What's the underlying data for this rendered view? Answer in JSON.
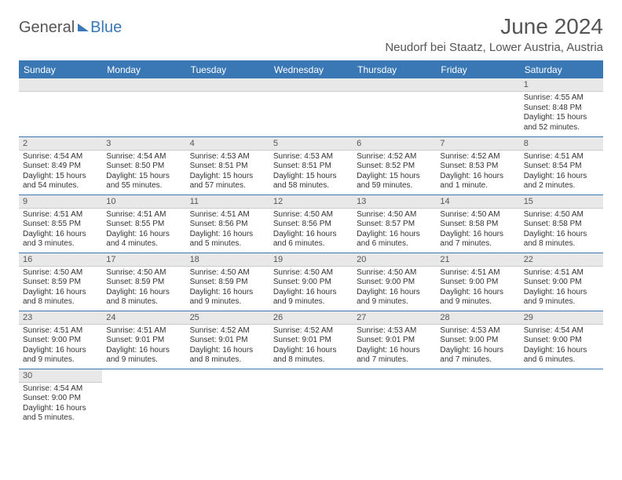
{
  "brand": {
    "part1": "General",
    "part2": "Blue"
  },
  "title": "June 2024",
  "location": "Neudorf bei Staatz, Lower Austria, Austria",
  "daysOfWeek": [
    "Sunday",
    "Monday",
    "Tuesday",
    "Wednesday",
    "Thursday",
    "Friday",
    "Saturday"
  ],
  "colors": {
    "header_bg": "#3a78b5",
    "header_text": "#ffffff",
    "daynum_bg": "#e8e8e8",
    "border": "#3a78b5",
    "text": "#333333",
    "title_text": "#555555"
  },
  "weeks": [
    [
      {
        "blank": true
      },
      {
        "blank": true
      },
      {
        "blank": true
      },
      {
        "blank": true
      },
      {
        "blank": true
      },
      {
        "blank": true
      },
      {
        "num": "1",
        "sunrise": "Sunrise: 4:55 AM",
        "sunset": "Sunset: 8:48 PM",
        "daylight": "Daylight: 15 hours and 52 minutes."
      }
    ],
    [
      {
        "num": "2",
        "sunrise": "Sunrise: 4:54 AM",
        "sunset": "Sunset: 8:49 PM",
        "daylight": "Daylight: 15 hours and 54 minutes."
      },
      {
        "num": "3",
        "sunrise": "Sunrise: 4:54 AM",
        "sunset": "Sunset: 8:50 PM",
        "daylight": "Daylight: 15 hours and 55 minutes."
      },
      {
        "num": "4",
        "sunrise": "Sunrise: 4:53 AM",
        "sunset": "Sunset: 8:51 PM",
        "daylight": "Daylight: 15 hours and 57 minutes."
      },
      {
        "num": "5",
        "sunrise": "Sunrise: 4:53 AM",
        "sunset": "Sunset: 8:51 PM",
        "daylight": "Daylight: 15 hours and 58 minutes."
      },
      {
        "num": "6",
        "sunrise": "Sunrise: 4:52 AM",
        "sunset": "Sunset: 8:52 PM",
        "daylight": "Daylight: 15 hours and 59 minutes."
      },
      {
        "num": "7",
        "sunrise": "Sunrise: 4:52 AM",
        "sunset": "Sunset: 8:53 PM",
        "daylight": "Daylight: 16 hours and 1 minute."
      },
      {
        "num": "8",
        "sunrise": "Sunrise: 4:51 AM",
        "sunset": "Sunset: 8:54 PM",
        "daylight": "Daylight: 16 hours and 2 minutes."
      }
    ],
    [
      {
        "num": "9",
        "sunrise": "Sunrise: 4:51 AM",
        "sunset": "Sunset: 8:55 PM",
        "daylight": "Daylight: 16 hours and 3 minutes."
      },
      {
        "num": "10",
        "sunrise": "Sunrise: 4:51 AM",
        "sunset": "Sunset: 8:55 PM",
        "daylight": "Daylight: 16 hours and 4 minutes."
      },
      {
        "num": "11",
        "sunrise": "Sunrise: 4:51 AM",
        "sunset": "Sunset: 8:56 PM",
        "daylight": "Daylight: 16 hours and 5 minutes."
      },
      {
        "num": "12",
        "sunrise": "Sunrise: 4:50 AM",
        "sunset": "Sunset: 8:56 PM",
        "daylight": "Daylight: 16 hours and 6 minutes."
      },
      {
        "num": "13",
        "sunrise": "Sunrise: 4:50 AM",
        "sunset": "Sunset: 8:57 PM",
        "daylight": "Daylight: 16 hours and 6 minutes."
      },
      {
        "num": "14",
        "sunrise": "Sunrise: 4:50 AM",
        "sunset": "Sunset: 8:58 PM",
        "daylight": "Daylight: 16 hours and 7 minutes."
      },
      {
        "num": "15",
        "sunrise": "Sunrise: 4:50 AM",
        "sunset": "Sunset: 8:58 PM",
        "daylight": "Daylight: 16 hours and 8 minutes."
      }
    ],
    [
      {
        "num": "16",
        "sunrise": "Sunrise: 4:50 AM",
        "sunset": "Sunset: 8:59 PM",
        "daylight": "Daylight: 16 hours and 8 minutes."
      },
      {
        "num": "17",
        "sunrise": "Sunrise: 4:50 AM",
        "sunset": "Sunset: 8:59 PM",
        "daylight": "Daylight: 16 hours and 8 minutes."
      },
      {
        "num": "18",
        "sunrise": "Sunrise: 4:50 AM",
        "sunset": "Sunset: 8:59 PM",
        "daylight": "Daylight: 16 hours and 9 minutes."
      },
      {
        "num": "19",
        "sunrise": "Sunrise: 4:50 AM",
        "sunset": "Sunset: 9:00 PM",
        "daylight": "Daylight: 16 hours and 9 minutes."
      },
      {
        "num": "20",
        "sunrise": "Sunrise: 4:50 AM",
        "sunset": "Sunset: 9:00 PM",
        "daylight": "Daylight: 16 hours and 9 minutes."
      },
      {
        "num": "21",
        "sunrise": "Sunrise: 4:51 AM",
        "sunset": "Sunset: 9:00 PM",
        "daylight": "Daylight: 16 hours and 9 minutes."
      },
      {
        "num": "22",
        "sunrise": "Sunrise: 4:51 AM",
        "sunset": "Sunset: 9:00 PM",
        "daylight": "Daylight: 16 hours and 9 minutes."
      }
    ],
    [
      {
        "num": "23",
        "sunrise": "Sunrise: 4:51 AM",
        "sunset": "Sunset: 9:00 PM",
        "daylight": "Daylight: 16 hours and 9 minutes."
      },
      {
        "num": "24",
        "sunrise": "Sunrise: 4:51 AM",
        "sunset": "Sunset: 9:01 PM",
        "daylight": "Daylight: 16 hours and 9 minutes."
      },
      {
        "num": "25",
        "sunrise": "Sunrise: 4:52 AM",
        "sunset": "Sunset: 9:01 PM",
        "daylight": "Daylight: 16 hours and 8 minutes."
      },
      {
        "num": "26",
        "sunrise": "Sunrise: 4:52 AM",
        "sunset": "Sunset: 9:01 PM",
        "daylight": "Daylight: 16 hours and 8 minutes."
      },
      {
        "num": "27",
        "sunrise": "Sunrise: 4:53 AM",
        "sunset": "Sunset: 9:01 PM",
        "daylight": "Daylight: 16 hours and 7 minutes."
      },
      {
        "num": "28",
        "sunrise": "Sunrise: 4:53 AM",
        "sunset": "Sunset: 9:00 PM",
        "daylight": "Daylight: 16 hours and 7 minutes."
      },
      {
        "num": "29",
        "sunrise": "Sunrise: 4:54 AM",
        "sunset": "Sunset: 9:00 PM",
        "daylight": "Daylight: 16 hours and 6 minutes."
      }
    ],
    [
      {
        "num": "30",
        "sunrise": "Sunrise: 4:54 AM",
        "sunset": "Sunset: 9:00 PM",
        "daylight": "Daylight: 16 hours and 5 minutes."
      },
      {
        "blank": true
      },
      {
        "blank": true
      },
      {
        "blank": true
      },
      {
        "blank": true
      },
      {
        "blank": true
      },
      {
        "blank": true
      }
    ]
  ]
}
